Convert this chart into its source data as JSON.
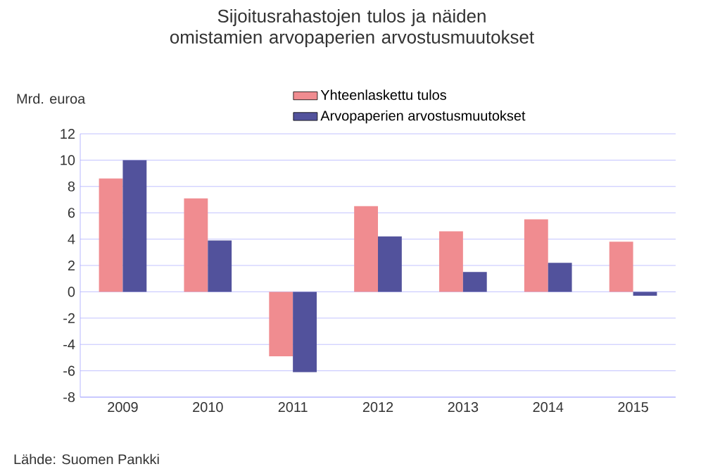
{
  "chart_data": {
    "type": "bar",
    "title": "Sijoitusrahastojen tulos ja näiden omistamien arvopaperien arvostusmuutokset",
    "ylabel": "Mrd. euroa",
    "categories": [
      "2009",
      "2010",
      "2011",
      "2012",
      "2013",
      "2014",
      "2015"
    ],
    "series": [
      {
        "name": "Yhteenlaskettu tulos",
        "color": "#f08c90",
        "values": [
          8.6,
          7.1,
          -4.9,
          6.5,
          4.6,
          5.5,
          3.8
        ]
      },
      {
        "name": "Arvopaperien arvostusmuutokset",
        "color": "#52529c",
        "values": [
          10.0,
          3.9,
          -6.1,
          4.2,
          1.5,
          2.2,
          -0.3
        ]
      }
    ],
    "ylim": [
      -8,
      12
    ],
    "yticks": [
      -8,
      -6,
      -4,
      -2,
      0,
      2,
      4,
      6,
      8,
      10,
      12
    ],
    "grid": "y",
    "legend": "top",
    "annotations": [
      "Lähde: Suomen Pankki"
    ]
  }
}
